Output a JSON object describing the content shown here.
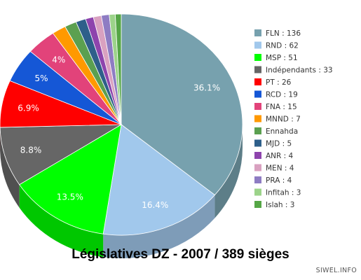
{
  "chart_data": {
    "type": "pie",
    "title": "Législatives DZ - 2007 / 389 sièges",
    "three_d": true,
    "legend_position": "right",
    "slices": [
      {
        "name": "FLN",
        "value": 136,
        "legend": "FLN : 136",
        "label": "36.1%",
        "color": "#77A1AE"
      },
      {
        "name": "RND",
        "value": 62,
        "legend": "RND : 62",
        "label": "16.4%",
        "color": "#A1C8EC"
      },
      {
        "name": "MSP",
        "value": 51,
        "legend": "MSP : 51",
        "label": "13.5%",
        "color": "#00FF00"
      },
      {
        "name": "Indépendants",
        "value": 33,
        "legend": "Indépendants : 33",
        "label": "8.8%",
        "color": "#666666"
      },
      {
        "name": "PT",
        "value": 26,
        "legend": "PT : 26",
        "label": "6.9%",
        "color": "#FF0000"
      },
      {
        "name": "RCD",
        "value": 19,
        "legend": "RCD : 19",
        "label": "5%",
        "color": "#1557D6"
      },
      {
        "name": "FNA",
        "value": 15,
        "legend": "FNA : 15",
        "label": "4%",
        "color": "#E2437A"
      },
      {
        "name": "MNND",
        "value": 7,
        "legend": "MNND : 7",
        "label": "",
        "color": "#FF9900"
      },
      {
        "name": "Ennahda",
        "value": 6,
        "legend": "Ennahda",
        "label": "",
        "color": "#5BA050"
      },
      {
        "name": "MJD",
        "value": 5,
        "legend": "MJD : 5",
        "label": "",
        "color": "#2E5F8A"
      },
      {
        "name": "ANR",
        "value": 4,
        "legend": "ANR : 4",
        "label": "",
        "color": "#8E44AD"
      },
      {
        "name": "MEN",
        "value": 4,
        "legend": "MEN : 4",
        "label": "",
        "color": "#D9A1C0"
      },
      {
        "name": "PRA",
        "value": 4,
        "legend": "PRA : 4",
        "label": "",
        "color": "#8E7CC3"
      },
      {
        "name": "Infitah",
        "value": 3,
        "legend": "Infitah : 3",
        "label": "",
        "color": "#9CD38A"
      },
      {
        "name": "Islah",
        "value": 3,
        "legend": "Islah : 3",
        "label": "",
        "color": "#55A646"
      }
    ]
  },
  "credit": "SIWEL.INFO"
}
